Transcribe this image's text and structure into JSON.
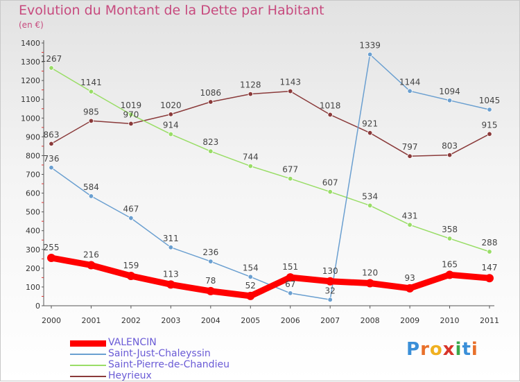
{
  "title": "Evolution du Montant de la Dette par Habitant",
  "unit": "(en €)",
  "logo_text": "Proxiti",
  "chart_data": {
    "type": "line",
    "x": [
      "2000",
      "2001",
      "2002",
      "2003",
      "2004",
      "2005",
      "2006",
      "2007",
      "2008",
      "2009",
      "2010",
      "2011"
    ],
    "ylim": [
      0,
      1400
    ],
    "yticks": [
      0,
      100,
      200,
      300,
      400,
      500,
      600,
      700,
      800,
      900,
      1000,
      1100,
      1200,
      1300,
      1400
    ],
    "grid": false,
    "legend_position": "bottom-left",
    "series": [
      {
        "name": "VALENCIN",
        "color": "#ff0000",
        "values": [
          255,
          216,
          159,
          113,
          78,
          52,
          151,
          130,
          120,
          93,
          165,
          147
        ]
      },
      {
        "name": "Saint-Just-Chaleyssin",
        "color": "#6a9fd0",
        "values": [
          736,
          584,
          467,
          311,
          236,
          154,
          67,
          32,
          1339,
          1144,
          1094,
          1045
        ]
      },
      {
        "name": "Saint-Pierre-de-Chandieu",
        "color": "#99dd66",
        "values": [
          1267,
          1141,
          1019,
          914,
          823,
          744,
          677,
          607,
          534,
          431,
          358,
          288
        ]
      },
      {
        "name": "Heyrieux",
        "color": "#8a3a3a",
        "values": [
          863,
          985,
          970,
          1020,
          1086,
          1128,
          1143,
          1018,
          921,
          797,
          803,
          915
        ]
      }
    ]
  }
}
